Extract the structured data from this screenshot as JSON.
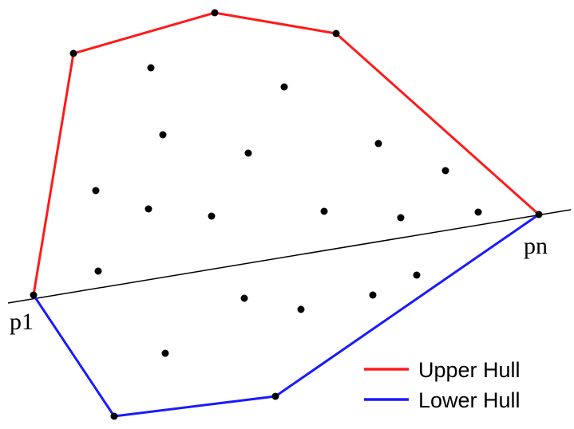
{
  "labels": {
    "p1": "p1",
    "pn": "pn"
  },
  "legend": {
    "upper": {
      "label": "Upper Hull",
      "color": "#ff1a1a"
    },
    "lower": {
      "label": "Lower Hull",
      "color": "#1a1aff"
    }
  },
  "colors": {
    "point": "#000000",
    "split_line": "#000000"
  }
}
